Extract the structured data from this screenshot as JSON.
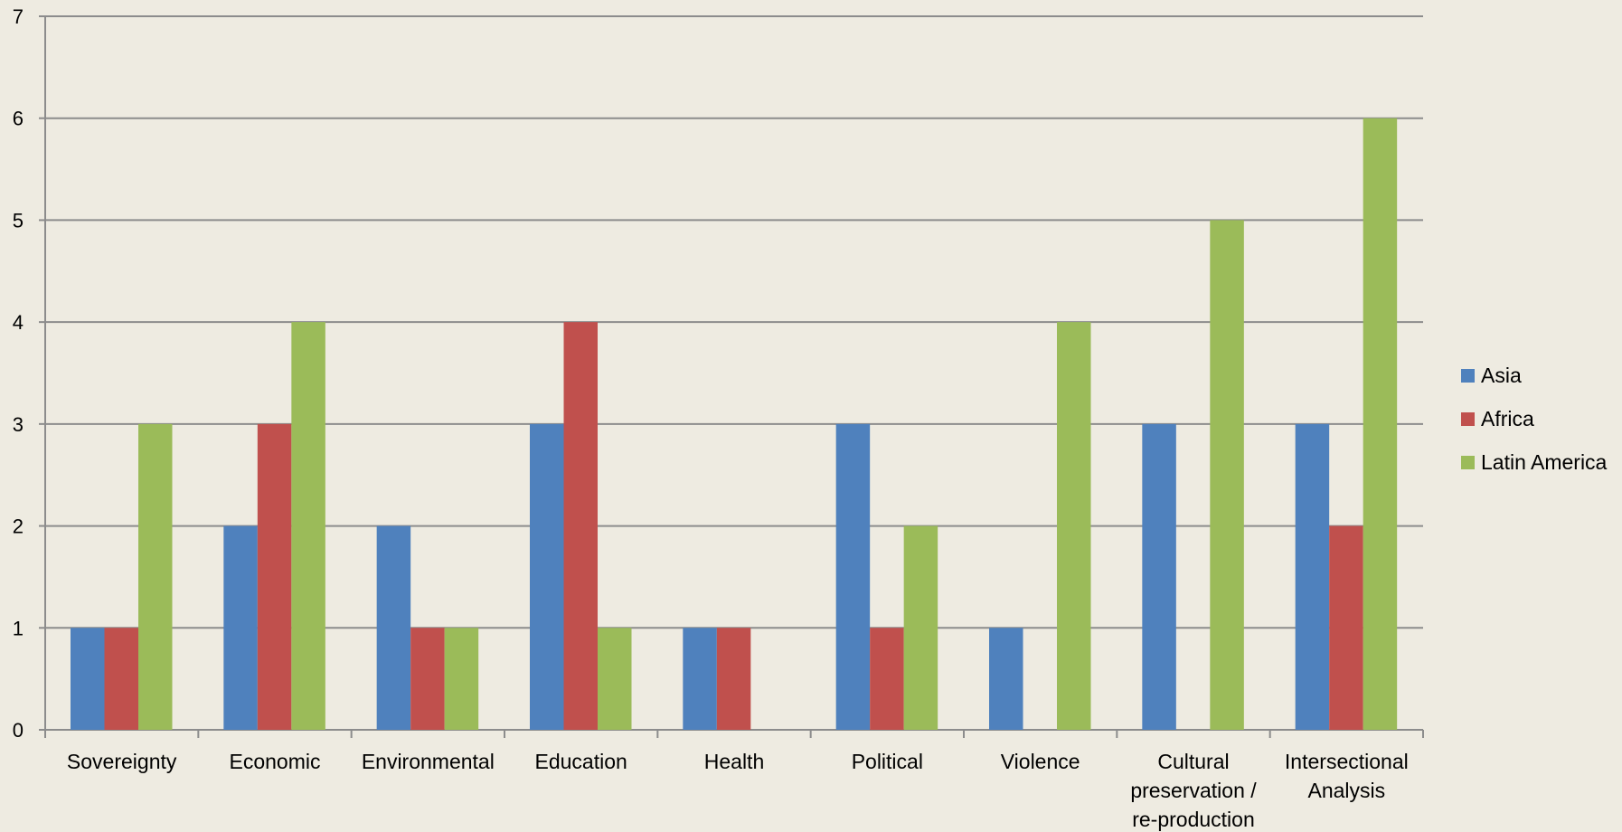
{
  "chart_data": {
    "type": "bar",
    "title": "",
    "xlabel": "",
    "ylabel": "",
    "categories": [
      [
        "Sovereignty"
      ],
      [
        "Economic"
      ],
      [
        "Environmental"
      ],
      [
        "Education"
      ],
      [
        "Health"
      ],
      [
        "Political"
      ],
      [
        "Violence"
      ],
      [
        "Cultural",
        "preservation /",
        "re-production"
      ],
      [
        "Intersectional",
        "Analysis"
      ]
    ],
    "series": [
      {
        "name": "Asia",
        "color": "#4F81BD",
        "values": [
          1,
          2,
          2,
          3,
          1,
          3,
          1,
          3,
          3
        ]
      },
      {
        "name": "Africa",
        "color": "#C0504D",
        "values": [
          1,
          3,
          1,
          4,
          1,
          1,
          0,
          0,
          2
        ]
      },
      {
        "name": "Latin America",
        "color": "#9BBB59",
        "values": [
          3,
          4,
          1,
          1,
          0,
          2,
          4,
          5,
          6
        ]
      }
    ],
    "ylim": [
      0,
      7
    ],
    "yticks": [
      0,
      1,
      2,
      3,
      4,
      5,
      6,
      7
    ],
    "grid": true,
    "legend_position": "right"
  }
}
